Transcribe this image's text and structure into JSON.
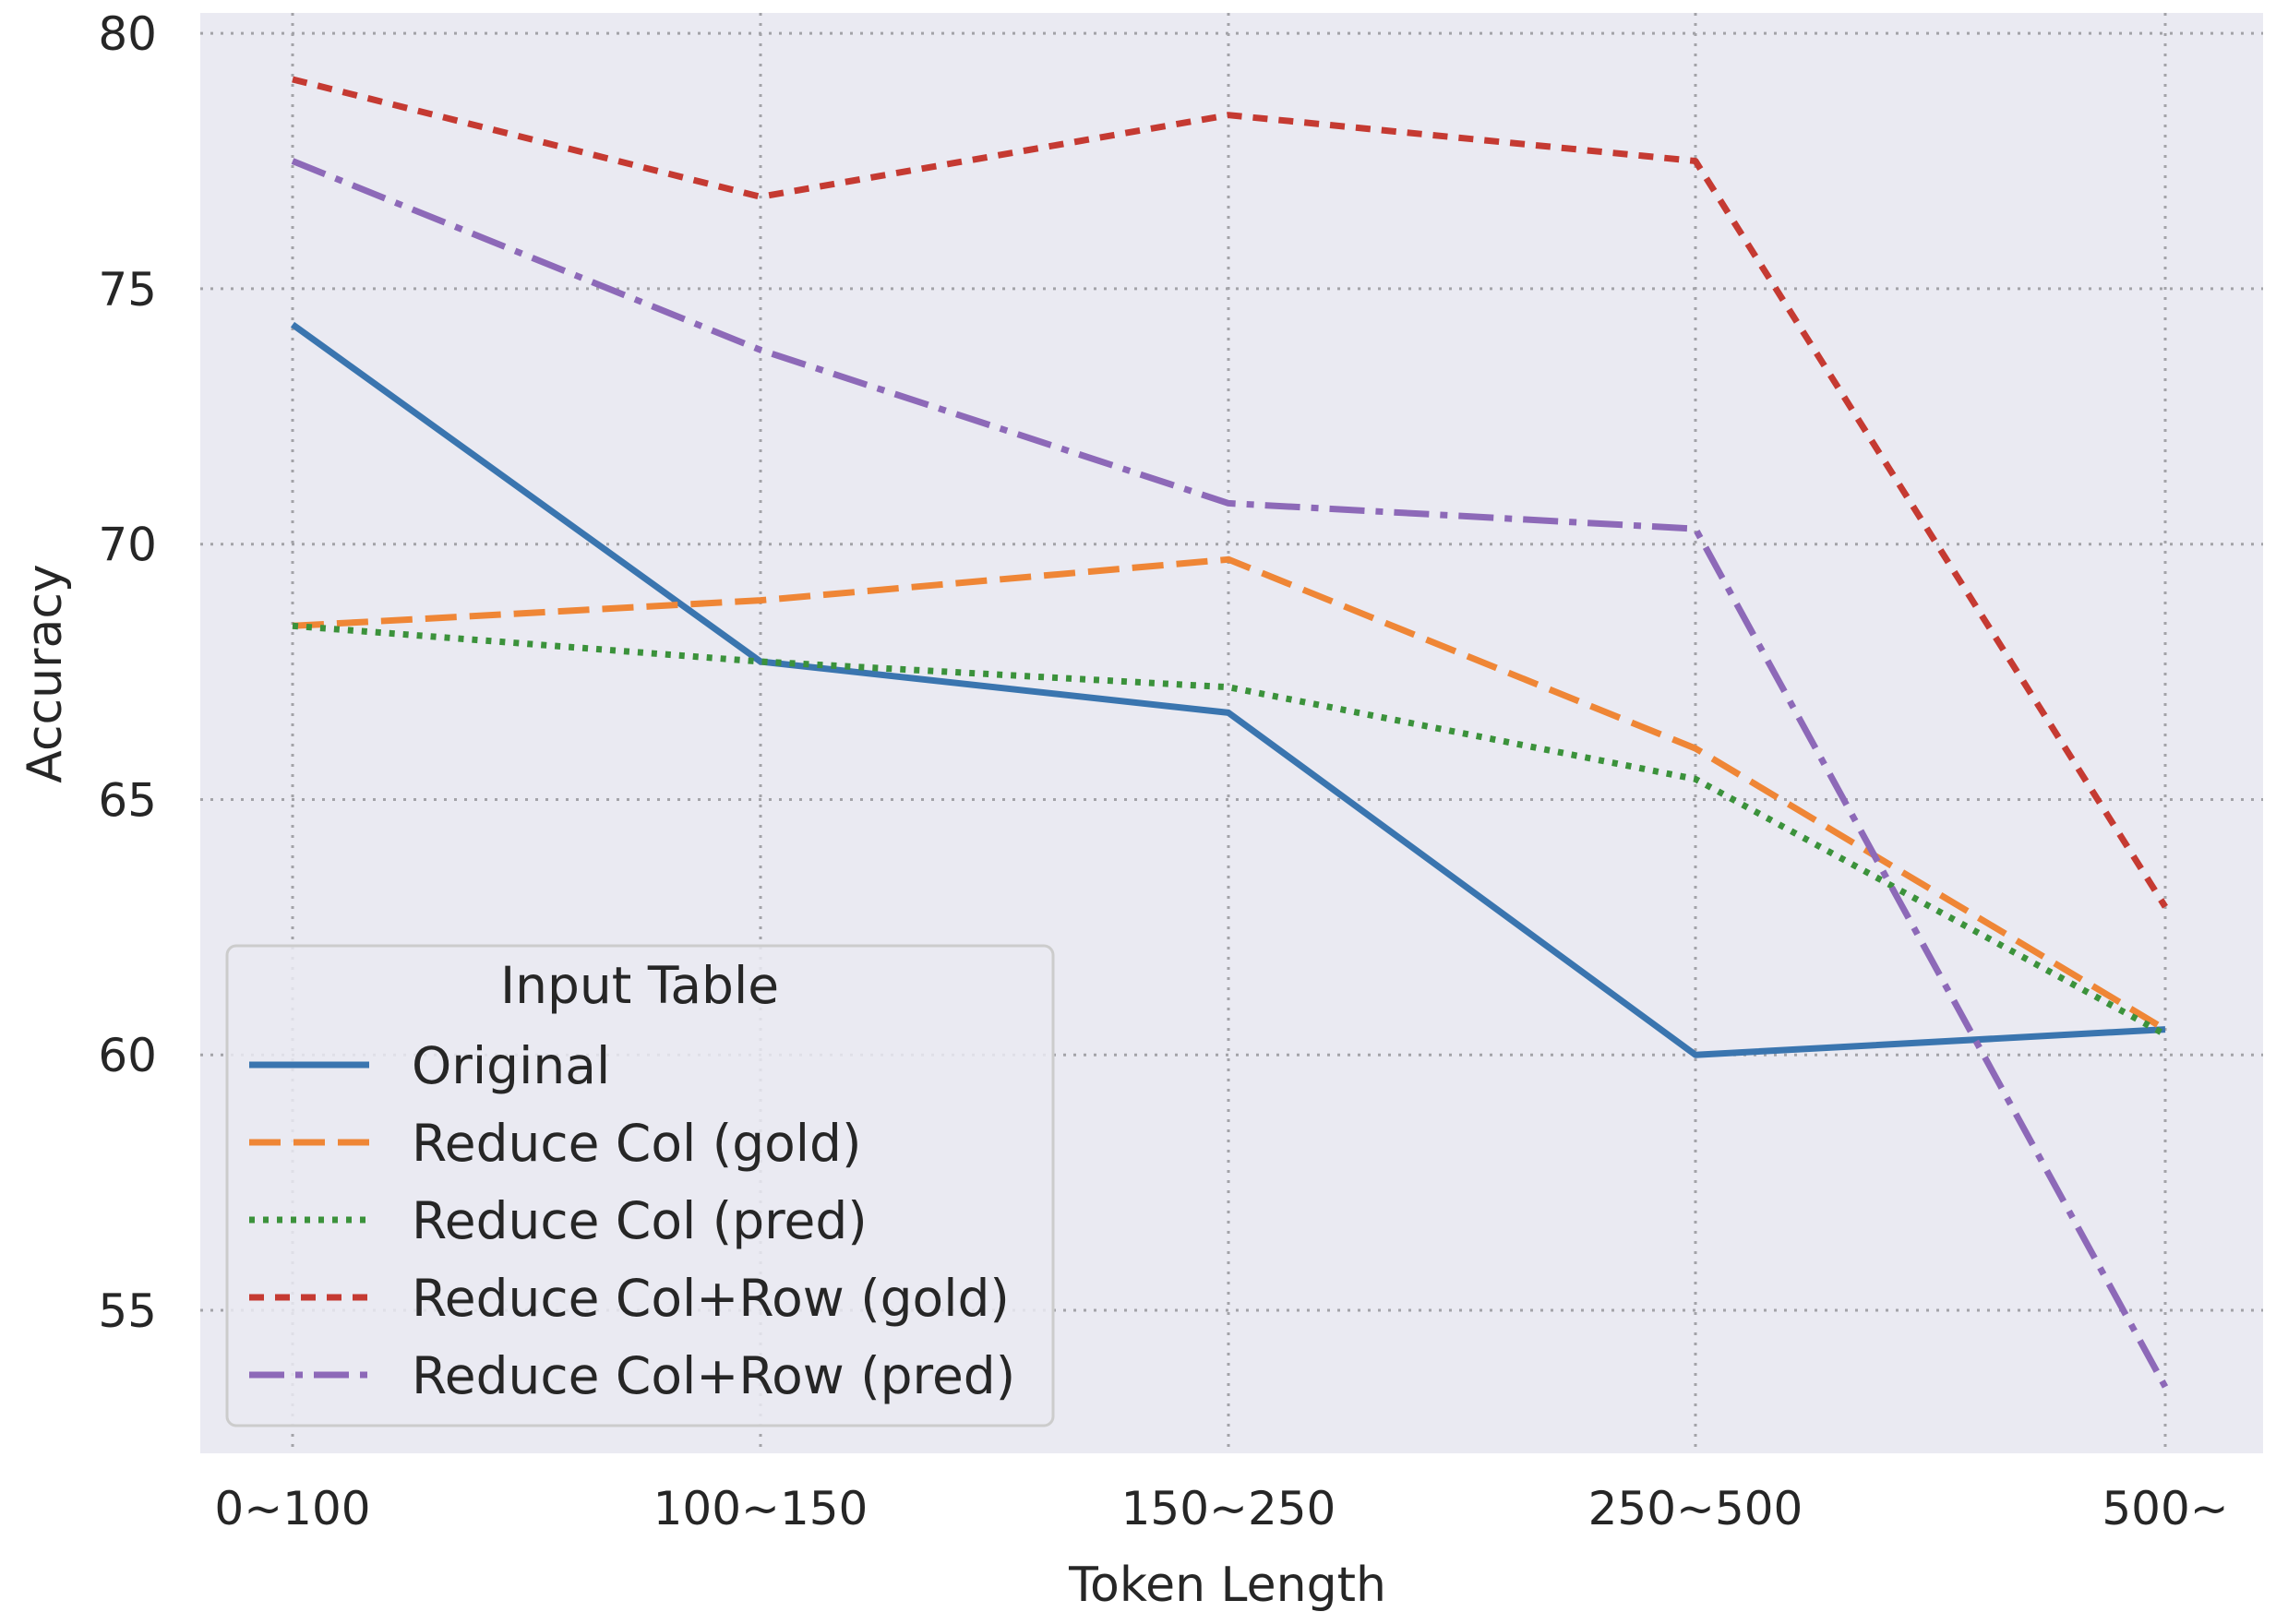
{
  "chart_data": {
    "type": "line",
    "title": "",
    "xlabel": "Token Length",
    "ylabel": "Accuracy",
    "categories": [
      "0~100",
      "100~150",
      "150~250",
      "250~500",
      "500~"
    ],
    "ylim": [
      52.2,
      80.4
    ],
    "yticks": [
      55,
      60,
      65,
      70,
      75,
      80
    ],
    "grid": true,
    "legend": {
      "title": "Input Table",
      "position": "lower-left"
    },
    "series": [
      {
        "name": "Original",
        "values": [
          74.3,
          67.7,
          66.7,
          60.0,
          60.5
        ],
        "color": "#3a75af",
        "style": "solid"
      },
      {
        "name": "Reduce Col (gold)",
        "values": [
          68.4,
          68.9,
          69.7,
          66.0,
          60.5
        ],
        "color": "#ef8636",
        "style": "dashed"
      },
      {
        "name": "Reduce Col (pred)",
        "values": [
          68.4,
          67.7,
          67.2,
          65.4,
          60.4
        ],
        "color": "#3b923b",
        "style": "dotted"
      },
      {
        "name": "Reduce Col+Row (gold)",
        "values": [
          79.1,
          76.8,
          78.4,
          77.5,
          62.9
        ],
        "color": "#c53a32",
        "style": "dashdense"
      },
      {
        "name": "Reduce Col+Row (pred)",
        "values": [
          77.5,
          73.8,
          70.8,
          70.3,
          53.5
        ],
        "color": "#8d69b8",
        "style": "dashdot"
      }
    ]
  }
}
